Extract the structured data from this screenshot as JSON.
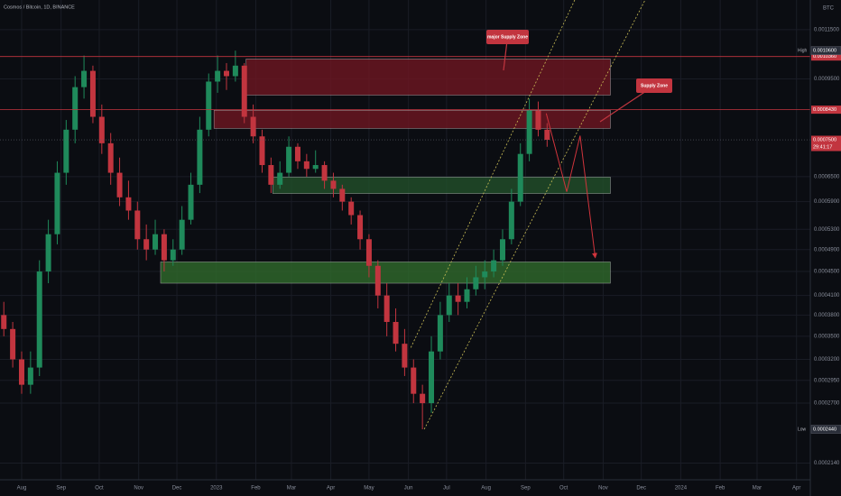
{
  "header": {
    "title": "Cosmos / Bitcoin, 1D, BINANCE",
    "currency": "BTC"
  },
  "chart_data": {
    "type": "candlestick",
    "x": [
      -2,
      -1,
      0,
      1,
      2,
      3,
      4,
      5,
      6,
      7,
      8,
      9,
      10,
      11,
      12,
      13,
      14,
      15,
      16,
      17,
      18,
      19,
      20,
      21,
      22,
      23,
      24,
      25,
      26,
      27,
      28,
      29,
      30,
      31,
      32,
      33,
      34,
      35,
      36,
      37,
      38,
      39,
      40,
      41,
      42,
      43,
      44,
      45,
      46,
      47,
      48,
      49,
      50,
      51,
      52,
      53,
      54,
      55,
      56,
      57,
      58,
      59
    ],
    "open": [
      0.00038,
      0.00036,
      0.00032,
      0.00029,
      0.00031,
      0.00045,
      0.00052,
      0.00066,
      0.00078,
      0.00092,
      0.00098,
      0.00082,
      0.00074,
      0.00066,
      0.0006,
      0.00057,
      0.00051,
      0.00049,
      0.00052,
      0.00047,
      0.00049,
      0.00055,
      0.00063,
      0.00078,
      0.00094,
      0.00098,
      0.00096,
      0.001,
      0.00082,
      0.00076,
      0.00068,
      0.00063,
      0.00066,
      0.00073,
      0.00069,
      0.00067,
      0.00068,
      0.00064,
      0.00062,
      0.00059,
      0.00056,
      0.00051,
      0.00046,
      0.00041,
      0.00037,
      0.00034,
      0.00031,
      0.00028,
      0.00027,
      0.00033,
      0.00038,
      0.00041,
      0.0004,
      0.00042,
      0.00044,
      0.00045,
      0.00047,
      0.00051,
      0.00059,
      0.00071,
      0.00084,
      0.00078
    ],
    "high": [
      0.0004,
      0.00037,
      0.00033,
      0.00033,
      0.00047,
      0.00055,
      0.00069,
      0.00081,
      0.00096,
      0.00104,
      0.001,
      0.00086,
      0.00077,
      0.0007,
      0.00064,
      0.00059,
      0.00054,
      0.00055,
      0.00053,
      0.00051,
      0.00058,
      0.00066,
      0.00082,
      0.00097,
      0.00104,
      0.00101,
      0.00106,
      0.00101,
      0.00086,
      0.00078,
      0.0007,
      0.00069,
      0.00076,
      0.00074,
      0.00071,
      0.00072,
      0.00069,
      0.00066,
      0.00063,
      0.0006,
      0.00057,
      0.00052,
      0.00047,
      0.00043,
      0.00039,
      0.00036,
      0.00032,
      0.00029,
      0.00035,
      0.0004,
      0.00043,
      0.00043,
      0.00044,
      0.00046,
      0.00047,
      0.00049,
      0.00053,
      0.00062,
      0.00074,
      0.00088,
      0.00087,
      0.0008
    ],
    "low": [
      0.00035,
      0.00031,
      0.00028,
      0.00028,
      0.0003,
      0.00043,
      0.0005,
      0.00063,
      0.00074,
      0.00088,
      0.0008,
      0.00071,
      0.00063,
      0.00058,
      0.00055,
      0.00049,
      0.00047,
      0.00048,
      0.00045,
      0.00046,
      0.00048,
      0.00054,
      0.00061,
      0.00076,
      0.0009,
      0.00091,
      0.00094,
      0.0008,
      0.00074,
      0.00066,
      0.00061,
      0.00062,
      0.00065,
      0.00067,
      0.00065,
      0.00066,
      0.00062,
      0.0006,
      0.00057,
      0.00054,
      0.00049,
      0.00044,
      0.00039,
      0.00035,
      0.00033,
      0.0003,
      0.00027,
      0.000244,
      0.00026,
      0.00032,
      0.00037,
      0.00038,
      0.00039,
      0.00041,
      0.00042,
      0.00044,
      0.00046,
      0.0005,
      0.00058,
      0.00069,
      0.00076,
      0.00073
    ],
    "close": [
      0.00036,
      0.00032,
      0.00029,
      0.00031,
      0.00045,
      0.00052,
      0.00066,
      0.00078,
      0.00092,
      0.00098,
      0.00082,
      0.00074,
      0.00066,
      0.0006,
      0.00057,
      0.00051,
      0.00049,
      0.00052,
      0.00047,
      0.00049,
      0.00055,
      0.00063,
      0.00078,
      0.00094,
      0.00098,
      0.00096,
      0.001,
      0.00082,
      0.00076,
      0.00068,
      0.00063,
      0.00066,
      0.00073,
      0.00069,
      0.00067,
      0.00068,
      0.00064,
      0.00062,
      0.00059,
      0.00056,
      0.00051,
      0.00046,
      0.00041,
      0.00037,
      0.00034,
      0.00031,
      0.00028,
      0.00027,
      0.00033,
      0.00038,
      0.00041,
      0.0004,
      0.00042,
      0.00044,
      0.00045,
      0.00047,
      0.00051,
      0.00059,
      0.00071,
      0.00084,
      0.00078,
      0.00075
    ],
    "up_color": "#1f8a5b",
    "down_color": "#c2353f",
    "log_scale": true,
    "grid": true,
    "ylim": [
      0.000202,
      0.00129
    ],
    "yticks": [
      {
        "value": 0.00115,
        "label": "0.0011500"
      },
      {
        "value": 0.00095,
        "label": "0.0009500"
      },
      {
        "value": 0.00065,
        "label": "0.0006500"
      },
      {
        "value": 0.00059,
        "label": "0.0005900"
      },
      {
        "value": 0.00053,
        "label": "0.0005300"
      },
      {
        "value": 0.00049,
        "label": "0.0004900"
      },
      {
        "value": 0.00045,
        "label": "0.0004500"
      },
      {
        "value": 0.00041,
        "label": "0.0004100"
      },
      {
        "value": 0.00038,
        "label": "0.0003800"
      },
      {
        "value": 0.00035,
        "label": "0.0003500"
      },
      {
        "value": 0.00032,
        "label": "0.0003200"
      },
      {
        "value": 0.000295,
        "label": "0.0002950"
      },
      {
        "value": 0.00027,
        "label": "0.0002700"
      },
      {
        "value": 0.000214,
        "label": "0.0002140"
      }
    ],
    "xlim": [
      -2.43,
      88.55
    ],
    "xticks": [
      {
        "value": 0,
        "label": "Aug"
      },
      {
        "value": 4.43,
        "label": "Sep"
      },
      {
        "value": 8.71,
        "label": "Oct"
      },
      {
        "value": 13.14,
        "label": "Nov"
      },
      {
        "value": 17.43,
        "label": "Dec"
      },
      {
        "value": 21.86,
        "label": "2023"
      },
      {
        "value": 26.29,
        "label": "Feb"
      },
      {
        "value": 30.29,
        "label": "Mar"
      },
      {
        "value": 34.71,
        "label": "Apr"
      },
      {
        "value": 39,
        "label": "May"
      },
      {
        "value": 43.43,
        "label": "Jun"
      },
      {
        "value": 47.71,
        "label": "Jul"
      },
      {
        "value": 52.14,
        "label": "Aug"
      },
      {
        "value": 56.57,
        "label": "Sep"
      },
      {
        "value": 60.86,
        "label": "Oct"
      },
      {
        "value": 65.29,
        "label": "Nov"
      },
      {
        "value": 69.57,
        "label": "Dec"
      },
      {
        "value": 74,
        "label": "2024"
      },
      {
        "value": 78.43,
        "label": "Feb"
      },
      {
        "value": 82.57,
        "label": "Mar"
      },
      {
        "value": 87,
        "label": "Apr"
      }
    ],
    "levels": [
      {
        "value": 0.001036,
        "label": "0.0010360",
        "color": "#c2353f"
      },
      {
        "value": 0.000843,
        "label": "0.0008430",
        "color": "#c2353f"
      }
    ],
    "current": {
      "value": 0.00075,
      "label": "0.0007500",
      "countdown": "29:41:17",
      "color": "#c2353f"
    },
    "high_mark": {
      "name": "High",
      "value": 0.00106,
      "label": "0.0010600"
    },
    "low_mark": {
      "name": "Low",
      "value": 0.000244,
      "label": "0.0002440"
    },
    "zones": [
      {
        "x": [
          25.2,
          66.1
        ],
        "y": [
          0.000892,
          0.001026
        ],
        "color": "#6e1622"
      },
      {
        "x": [
          21.6,
          66.1
        ],
        "y": [
          0.000784,
          0.000841
        ],
        "color": "#6e1622"
      },
      {
        "x": [
          28.2,
          66.1
        ],
        "y": [
          0.000609,
          0.000649
        ],
        "color": "#22502a"
      },
      {
        "x": [
          15.6,
          66.1
        ],
        "y": [
          0.00043,
          0.000467
        ],
        "color": "#2f6a2c"
      }
    ],
    "channel": [
      {
        "x": [
          45.2,
          70.0
        ],
        "y": [
          0.000244,
          0.00129
        ]
      },
      {
        "x": [
          43.7,
          62.1
        ],
        "y": [
          0.000335,
          0.00129
        ]
      }
    ],
    "channel_color": "#c9bd55",
    "projection": {
      "x": [
        58.9,
        61.2,
        62.7,
        64.4
      ],
      "y": [
        0.000831,
        0.000613,
        0.000762,
        0.000475
      ],
      "color": "#d0343c"
    },
    "annotations": [
      "major Supply Zone",
      "Supply Zone"
    ]
  }
}
